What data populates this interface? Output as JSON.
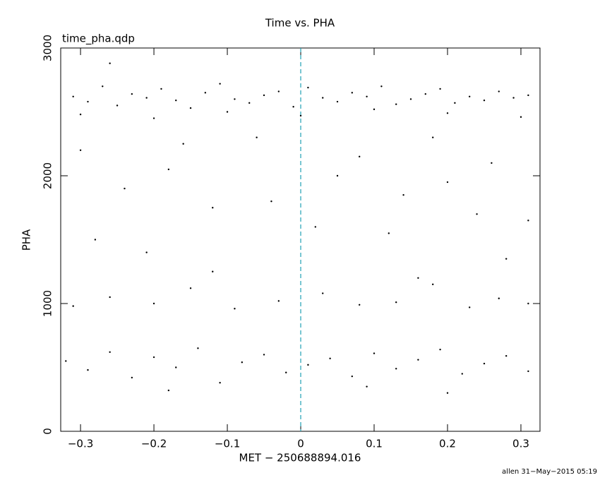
{
  "chart_data": {
    "type": "scatter",
    "title": "Time vs. PHA",
    "subtitle": "time_pha.qdp",
    "x_label": "MET − 250688894.016",
    "y_label": "PHA",
    "footer": "allen 31−May−2015 05:19",
    "color": "#000000",
    "vline": 0,
    "vline_color": "#1fa0b4",
    "xlim": [
      -0.327,
      0.326
    ],
    "ylim": [
      0,
      3000
    ],
    "xticks": [
      {
        "value": -0.3,
        "label": "−0.3"
      },
      {
        "value": -0.2,
        "label": "−0.2"
      },
      {
        "value": -0.1,
        "label": "−0.1"
      },
      0,
      0.1,
      0.2,
      0.3
    ],
    "yticks": [
      0,
      1000,
      2000,
      3000
    ],
    "x": [
      -0.31,
      -0.29,
      -0.27,
      -0.25,
      -0.23,
      -0.21,
      -0.19,
      -0.17,
      -0.15,
      -0.13,
      -0.11,
      -0.09,
      -0.07,
      -0.05,
      -0.03,
      -0.01,
      0.01,
      0.03,
      0.05,
      0.07,
      0.09,
      0.11,
      0.13,
      0.15,
      0.17,
      0.19,
      0.21,
      0.23,
      0.25,
      0.27,
      0.29,
      0.31,
      -0.3,
      -0.2,
      -0.1,
      0.0,
      0.1,
      0.2,
      0.3,
      -0.26,
      -0.3,
      -0.24,
      -0.18,
      -0.12,
      -0.06,
      0.02,
      0.08,
      0.14,
      0.2,
      0.26,
      0.31,
      -0.28,
      -0.16,
      -0.04,
      0.05,
      0.12,
      0.18,
      0.24,
      -0.21,
      0.28,
      -0.31,
      -0.26,
      -0.2,
      -0.15,
      -0.09,
      -0.03,
      0.03,
      0.08,
      0.13,
      0.18,
      0.23,
      0.27,
      0.31,
      -0.12,
      0.16,
      -0.32,
      -0.29,
      -0.26,
      -0.23,
      -0.2,
      -0.17,
      -0.14,
      -0.11,
      -0.08,
      -0.05,
      -0.02,
      0.01,
      0.04,
      0.07,
      0.1,
      0.13,
      0.16,
      0.19,
      0.22,
      0.25,
      0.28,
      0.31,
      -0.18,
      0.09,
      0.2
    ],
    "values": [
      2620,
      2580,
      2700,
      2550,
      2640,
      2610,
      2680,
      2590,
      2530,
      2650,
      2720,
      2600,
      2570,
      2630,
      2660,
      2540,
      2690,
      2610,
      2580,
      2650,
      2620,
      2700,
      2560,
      2600,
      2640,
      2680,
      2570,
      2620,
      2590,
      2660,
      2610,
      2630,
      2480,
      2450,
      2500,
      2470,
      2520,
      2490,
      2460,
      2880,
      2200,
      1900,
      2050,
      1750,
      2300,
      1600,
      2150,
      1850,
      1950,
      2100,
      1650,
      1500,
      2250,
      1800,
      2000,
      1550,
      2300,
      1700,
      1400,
      1350,
      980,
      1050,
      1000,
      1120,
      960,
      1020,
      1080,
      990,
      1010,
      1150,
      970,
      1040,
      1000,
      1250,
      1200,
      550,
      480,
      620,
      420,
      580,
      500,
      650,
      380,
      540,
      600,
      460,
      520,
      570,
      430,
      610,
      490,
      560,
      640,
      450,
      530,
      590,
      470,
      320,
      350,
      300
    ]
  }
}
